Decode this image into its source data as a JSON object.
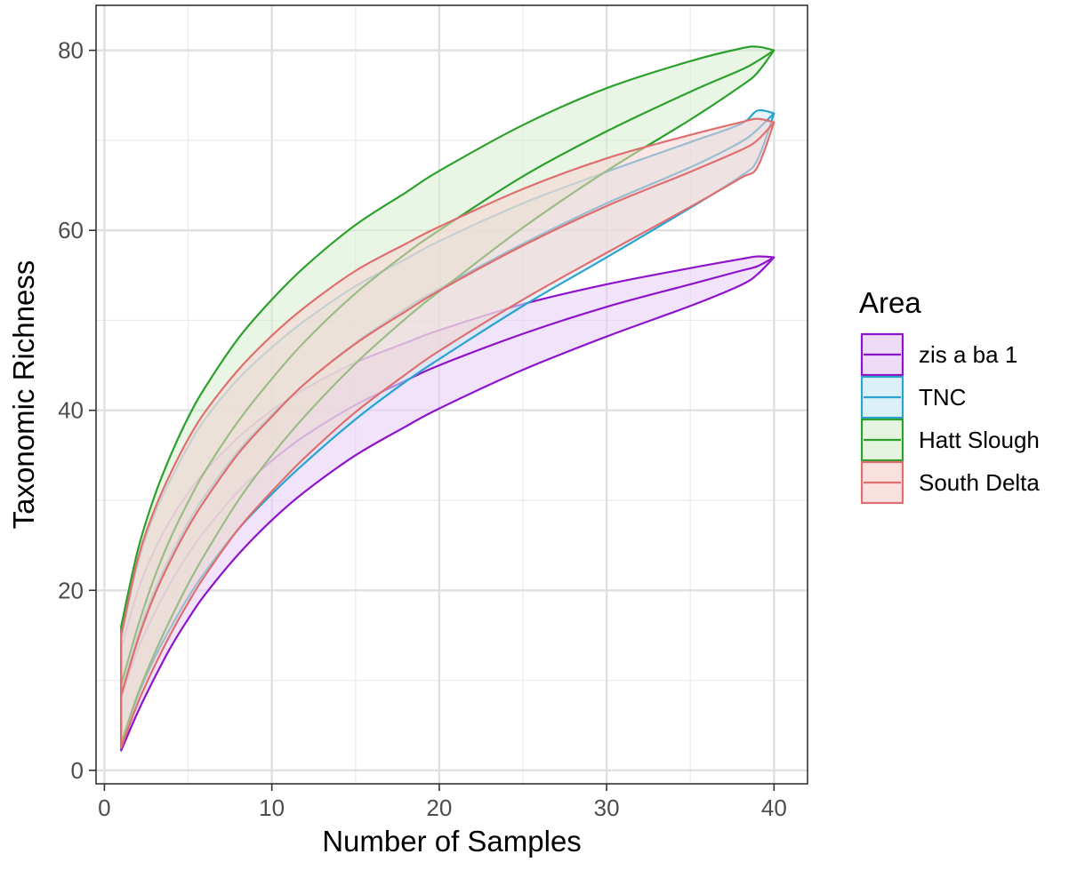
{
  "chart_data": {
    "type": "area",
    "xlabel": "Number of Samples",
    "ylabel": "Taxonomic Richness",
    "xlim": [
      -0.5,
      42
    ],
    "ylim": [
      -1.5,
      85
    ],
    "x_ticks": [
      0,
      10,
      20,
      30,
      40
    ],
    "y_ticks": [
      0,
      20,
      40,
      60,
      80
    ],
    "x_minor": [
      5,
      15,
      25,
      35
    ],
    "y_minor": [
      10,
      30,
      50,
      70
    ],
    "grid": true,
    "legend": {
      "title": "Area",
      "position": "right"
    },
    "x": [
      1,
      2,
      3,
      4,
      5,
      6,
      8,
      10,
      12,
      15,
      18,
      20,
      25,
      30,
      35,
      38,
      39,
      40
    ],
    "series": [
      {
        "name": "zis a ba 1",
        "color": "#9013cc",
        "fill": "#e5ccf5",
        "upper": [
          13.5,
          20,
          24.5,
          28,
          30.8,
          33.2,
          37,
          40,
          42.4,
          45.3,
          47.5,
          48.9,
          51.8,
          54,
          55.8,
          56.8,
          57.1,
          57
        ],
        "mid": [
          8,
          13.5,
          17.5,
          21,
          24,
          26.6,
          31,
          34.4,
          37.2,
          40.6,
          43.3,
          45,
          48.5,
          51.5,
          54,
          55.5,
          56,
          57
        ],
        "lower": [
          2.2,
          6.5,
          10.3,
          13.8,
          16.8,
          19.5,
          24,
          27.8,
          31,
          35,
          38.2,
          40.2,
          44.5,
          48.2,
          51.6,
          53.9,
          55.1,
          57
        ]
      },
      {
        "name": "TNC",
        "color": "#2aa3d1",
        "fill": "#cdebf4",
        "upper": [
          14.5,
          23,
          28.5,
          32.5,
          36,
          39,
          43.5,
          47,
          50,
          53.8,
          56.8,
          58.8,
          63,
          66.5,
          69.8,
          71.8,
          73.3,
          73
        ],
        "mid": [
          8.5,
          15,
          20,
          24,
          27.5,
          30.5,
          35.5,
          39.5,
          43,
          47.5,
          51.3,
          53.5,
          58.5,
          63,
          67,
          69.8,
          71.2,
          73
        ],
        "lower": [
          3,
          8.3,
          12.5,
          16,
          19.2,
          22,
          26.8,
          30.7,
          34.2,
          39,
          43.2,
          45.7,
          51.6,
          57,
          62.5,
          66,
          67.8,
          73
        ]
      },
      {
        "name": "Hatt Slough",
        "color": "#2ca02c",
        "fill": "#d8efd0",
        "upper": [
          16,
          24.5,
          30.5,
          35.2,
          39.2,
          42.5,
          48,
          52.3,
          56,
          60.6,
          64.2,
          66.6,
          71.7,
          75.8,
          78.8,
          80.2,
          80.4,
          80
        ],
        "mid": [
          9.5,
          16,
          21.5,
          26,
          29.8,
          33.2,
          38.8,
          43.5,
          47.7,
          53,
          57.4,
          60,
          66,
          71,
          75.4,
          77.8,
          78.8,
          80
        ],
        "lower": [
          3,
          8.5,
          13,
          17,
          20.7,
          24,
          30,
          35,
          39.4,
          45.2,
          50.2,
          53.2,
          60.3,
          66.6,
          72.3,
          76,
          77.5,
          80
        ]
      },
      {
        "name": "South Delta",
        "color": "#df6f6f",
        "fill": "#f7d4d2",
        "upper": [
          15,
          23.5,
          29,
          33.2,
          36.8,
          39.8,
          44.5,
          48.3,
          51.5,
          55.5,
          58.5,
          60.4,
          64.6,
          68,
          70.6,
          72,
          72.4,
          72
        ],
        "mid": [
          8.3,
          14.5,
          19.5,
          23.5,
          27,
          30,
          35.2,
          39.3,
          43,
          47.4,
          51,
          53.3,
          58.3,
          62.7,
          66.5,
          68.9,
          70,
          72
        ],
        "lower": [
          2.5,
          7.5,
          11.6,
          15.3,
          18.6,
          21.6,
          26.8,
          31,
          34.8,
          39.8,
          44,
          46.6,
          52.3,
          57.5,
          62.6,
          65.8,
          67,
          72
        ]
      }
    ]
  }
}
